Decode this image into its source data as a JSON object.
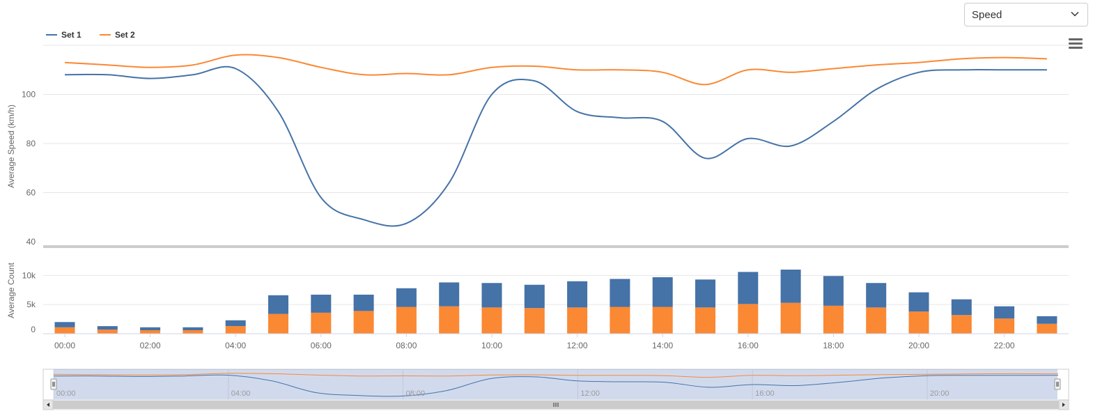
{
  "controls": {
    "metric_select_value": "Speed"
  },
  "colors": {
    "set1": "#4572a7",
    "set2": "#fb8833",
    "grid": "#e6e6e6",
    "navigator_mask": "rgba(102,133,194,0.3)"
  },
  "chart_data": [
    {
      "type": "line",
      "ylabel": "Average Speed (km/h)",
      "ylim": [
        40,
        120
      ],
      "yticks": [
        "40",
        "60",
        "80",
        "100"
      ],
      "ytick_values": [
        40,
        60,
        80,
        100
      ],
      "legend": {
        "placement": "top-left"
      },
      "x": [
        0,
        1,
        2,
        3,
        4,
        5,
        6,
        7,
        8,
        9,
        10,
        11,
        12,
        13,
        14,
        15,
        16,
        17,
        18,
        19,
        20,
        21,
        22,
        23
      ],
      "series": [
        {
          "name": "Set 1",
          "values": [
            108,
            108,
            106.5,
            108,
            110.5,
            93,
            58,
            49,
            47.5,
            64,
            100,
            105.5,
            93,
            90.5,
            89,
            74,
            82,
            79,
            89,
            102,
            109,
            110,
            110,
            110
          ]
        },
        {
          "name": "Set 2",
          "values": [
            113,
            112,
            111,
            112,
            116,
            115,
            111,
            108,
            108.5,
            108,
            111,
            111.5,
            110,
            110,
            109,
            104,
            110,
            109,
            110.5,
            112,
            113,
            114.5,
            115,
            114.5
          ]
        }
      ]
    },
    {
      "type": "bar",
      "stacked": true,
      "ylabel": "Average Count",
      "ylim": [
        0,
        11000
      ],
      "yticks": [
        "0",
        "5k",
        "10k"
      ],
      "ytick_values": [
        0,
        5000,
        10000
      ],
      "categories": [
        "00:00",
        "01:00",
        "02:00",
        "03:00",
        "04:00",
        "05:00",
        "06:00",
        "07:00",
        "08:00",
        "09:00",
        "10:00",
        "11:00",
        "12:00",
        "13:00",
        "14:00",
        "15:00",
        "16:00",
        "17:00",
        "18:00",
        "19:00",
        "20:00",
        "21:00",
        "22:00",
        "23:00"
      ],
      "xtick_labels": [
        "00:00",
        "02:00",
        "04:00",
        "06:00",
        "08:00",
        "10:00",
        "12:00",
        "14:00",
        "16:00",
        "18:00",
        "20:00",
        "22:00"
      ],
      "series": [
        {
          "name": "Set 1",
          "values": [
            900,
            600,
            500,
            500,
            1000,
            3200,
            3100,
            2800,
            3200,
            4100,
            4200,
            4000,
            4500,
            4800,
            5100,
            4800,
            5500,
            5700,
            5100,
            4200,
            3300,
            2700,
            2100,
            1300
          ]
        },
        {
          "name": "Set 2",
          "values": [
            1100,
            700,
            600,
            600,
            1300,
            3400,
            3600,
            3900,
            4600,
            4700,
            4500,
            4400,
            4500,
            4600,
            4600,
            4500,
            5100,
            5300,
            4800,
            4500,
            3800,
            3200,
            2600,
            1700
          ]
        }
      ]
    }
  ],
  "navigator": {
    "tick_labels": [
      "00:00",
      "04:00",
      "08:00",
      "12:00",
      "16:00",
      "20:00"
    ],
    "range": [
      "00:00",
      "23:00"
    ]
  }
}
